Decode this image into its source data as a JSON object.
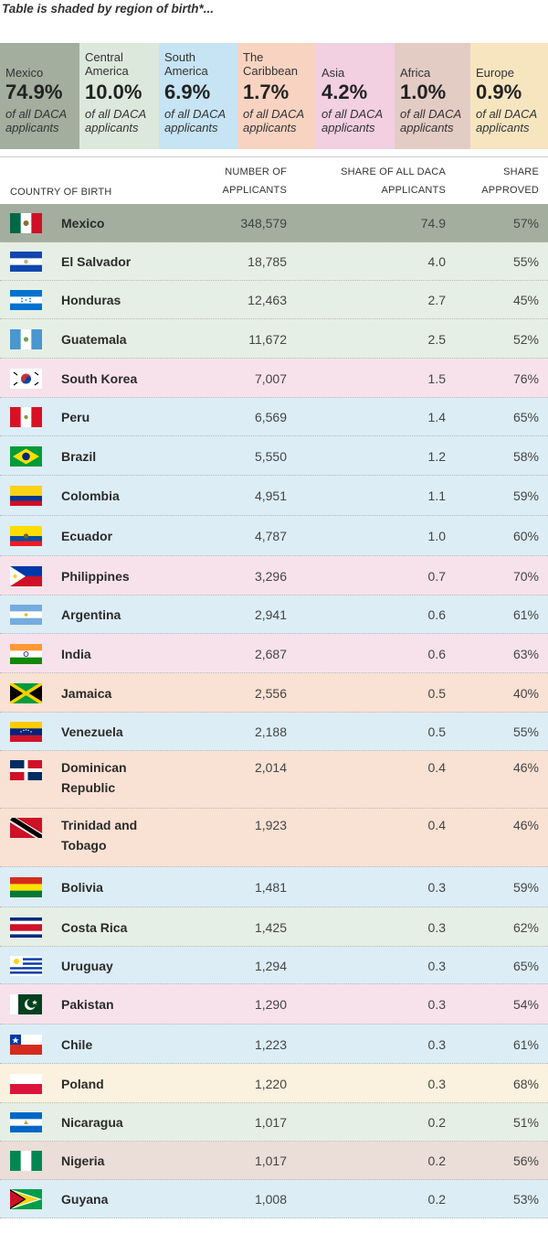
{
  "title": "Table is shaded by region of birth*...",
  "regions": [
    {
      "key": "mexico",
      "name": "Mexico",
      "pct": "74.9%",
      "note": "of all DACA applicants",
      "color": "#a3ae9e"
    },
    {
      "key": "central",
      "name": "Central America",
      "pct": "10.0%",
      "note": "of all DACA applicants",
      "color": "#dde8dd"
    },
    {
      "key": "south",
      "name": "South America",
      "pct": "6.9%",
      "note": "of all DACA applicants",
      "color": "#c6e4f4"
    },
    {
      "key": "caribbean",
      "name": "The Caribbean",
      "pct": "1.7%",
      "note": "of all DACA applicants",
      "color": "#f8d3c1"
    },
    {
      "key": "asia",
      "name": "Asia",
      "pct": "4.2%",
      "note": "of all DACA applicants",
      "color": "#f2cfe1"
    },
    {
      "key": "africa",
      "name": "Africa",
      "pct": "1.0%",
      "note": "of all DACA applicants",
      "color": "#e3ccc4"
    },
    {
      "key": "europe",
      "name": "Europe",
      "pct": "0.9%",
      "note": "of all DACA applicants",
      "color": "#f7e5c0"
    }
  ],
  "row_colors": {
    "mexico": "#a3ae9e",
    "central": "#e6efe5",
    "south": "#dcedf6",
    "caribbean": "#f9e1d3",
    "asia": "#f7e2ec",
    "africa": "#ebddd8",
    "europe": "#faf1de"
  },
  "headers": {
    "country": "COUNTRY OF BIRTH",
    "number_1": "NUMBER OF",
    "number_2": "APPLICANTS",
    "share_1": "SHARE OF ALL DACA",
    "share_2": "APPLICANTS",
    "approved_1": "SHARE",
    "approved_2": "APPROVED"
  },
  "chart_data": {
    "type": "table",
    "columns": [
      "COUNTRY OF BIRTH",
      "NUMBER OF APPLICANTS",
      "SHARE OF ALL DACA APPLICANTS",
      "SHARE APPROVED"
    ],
    "rows": [
      {
        "country": "Mexico",
        "region": "mexico",
        "flag": "mexico",
        "applicants": "348,579",
        "share": "74.9",
        "approved": "57%"
      },
      {
        "country": "El Salvador",
        "region": "central",
        "flag": "el-salvador",
        "applicants": "18,785",
        "share": "4.0",
        "approved": "55%"
      },
      {
        "country": "Honduras",
        "region": "central",
        "flag": "honduras",
        "applicants": "12,463",
        "share": "2.7",
        "approved": "45%"
      },
      {
        "country": "Guatemala",
        "region": "central",
        "flag": "guatemala",
        "applicants": "11,672",
        "share": "2.5",
        "approved": "52%"
      },
      {
        "country": "South Korea",
        "region": "asia",
        "flag": "south-korea",
        "applicants": "7,007",
        "share": "1.5",
        "approved": "76%"
      },
      {
        "country": "Peru",
        "region": "south",
        "flag": "peru",
        "applicants": "6,569",
        "share": "1.4",
        "approved": "65%"
      },
      {
        "country": "Brazil",
        "region": "south",
        "flag": "brazil",
        "applicants": "5,550",
        "share": "1.2",
        "approved": "58%"
      },
      {
        "country": "Colombia",
        "region": "south",
        "flag": "colombia",
        "applicants": "4,951",
        "share": "1.1",
        "approved": "59%"
      },
      {
        "country": "Ecuador",
        "region": "south",
        "flag": "ecuador",
        "applicants": "4,787",
        "share": "1.0",
        "approved": "60%"
      },
      {
        "country": "Philippines",
        "region": "asia",
        "flag": "philippines",
        "applicants": "3,296",
        "share": "0.7",
        "approved": "70%"
      },
      {
        "country": "Argentina",
        "region": "south",
        "flag": "argentina",
        "applicants": "2,941",
        "share": "0.6",
        "approved": "61%"
      },
      {
        "country": "India",
        "region": "asia",
        "flag": "india",
        "applicants": "2,687",
        "share": "0.6",
        "approved": "63%"
      },
      {
        "country": "Jamaica",
        "region": "caribbean",
        "flag": "jamaica",
        "applicants": "2,556",
        "share": "0.5",
        "approved": "40%"
      },
      {
        "country": "Venezuela",
        "region": "south",
        "flag": "venezuela",
        "applicants": "2,188",
        "share": "0.5",
        "approved": "55%"
      },
      {
        "country": "Dominican Republic",
        "region": "caribbean",
        "flag": "dominican-republic",
        "applicants": "2,014",
        "share": "0.4",
        "approved": "46%"
      },
      {
        "country": "Trinidad and Tobago",
        "region": "caribbean",
        "flag": "trinidad-and-tobago",
        "applicants": "1,923",
        "share": "0.4",
        "approved": "46%"
      },
      {
        "country": "Bolivia",
        "region": "south",
        "flag": "bolivia",
        "applicants": "1,481",
        "share": "0.3",
        "approved": "59%"
      },
      {
        "country": "Costa Rica",
        "region": "central",
        "flag": "costa-rica",
        "applicants": "1,425",
        "share": "0.3",
        "approved": "62%"
      },
      {
        "country": "Uruguay",
        "region": "south",
        "flag": "uruguay",
        "applicants": "1,294",
        "share": "0.3",
        "approved": "65%"
      },
      {
        "country": "Pakistan",
        "region": "asia",
        "flag": "pakistan",
        "applicants": "1,290",
        "share": "0.3",
        "approved": "54%"
      },
      {
        "country": "Chile",
        "region": "south",
        "flag": "chile",
        "applicants": "1,223",
        "share": "0.3",
        "approved": "61%"
      },
      {
        "country": "Poland",
        "region": "europe",
        "flag": "poland",
        "applicants": "1,220",
        "share": "0.3",
        "approved": "68%"
      },
      {
        "country": "Nicaragua",
        "region": "central",
        "flag": "nicaragua",
        "applicants": "1,017",
        "share": "0.2",
        "approved": "51%"
      },
      {
        "country": "Nigeria",
        "region": "africa",
        "flag": "nigeria",
        "applicants": "1,017",
        "share": "0.2",
        "approved": "56%"
      },
      {
        "country": "Guyana",
        "region": "south",
        "flag": "guyana",
        "applicants": "1,008",
        "share": "0.2",
        "approved": "53%"
      }
    ]
  }
}
